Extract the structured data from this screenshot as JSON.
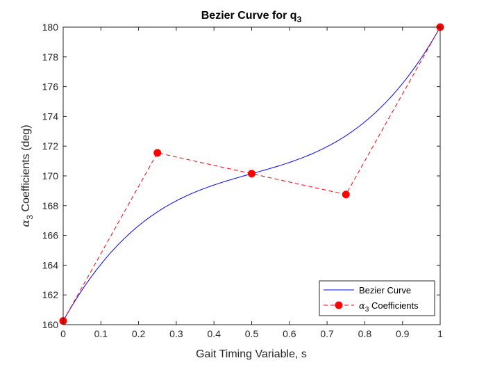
{
  "chart_data": {
    "type": "line",
    "title_main": "Bezier Curve for q",
    "title_sub": "3",
    "xlabel": "Gait Timing Variable, s",
    "ylabel_symbol": "α",
    "ylabel_sub": "3",
    "ylabel_rest": " Coefficients (deg)",
    "xlim": [
      0,
      1
    ],
    "ylim": [
      160,
      180
    ],
    "xticks": [
      0,
      0.1,
      0.2,
      0.3,
      0.4,
      0.5,
      0.6,
      0.7,
      0.8,
      0.9,
      1
    ],
    "xtick_labels": [
      "0",
      "0.1",
      "0.2",
      "0.3",
      "0.4",
      "0.5",
      "0.6",
      "0.7",
      "0.8",
      "0.9",
      "1"
    ],
    "yticks": [
      160,
      162,
      164,
      166,
      168,
      170,
      172,
      174,
      176,
      178,
      180
    ],
    "ytick_labels": [
      "160",
      "162",
      "164",
      "166",
      "168",
      "170",
      "172",
      "174",
      "176",
      "178",
      "180"
    ],
    "grid": false,
    "legend_position": "bottom-right",
    "series": [
      {
        "name": "Bezier Curve",
        "style": "solid",
        "color": "#0000ff",
        "bezier_control_points": [
          160.25,
          171.55,
          170.15,
          168.75,
          180.0
        ]
      },
      {
        "name_symbol": "α",
        "name_sub": "3",
        "name_rest": " Coefficients",
        "style": "dashed",
        "color": "#ff0000",
        "marker": "circle",
        "x": [
          0,
          0.25,
          0.5,
          0.75,
          1
        ],
        "y": [
          160.25,
          171.55,
          170.15,
          168.75,
          180.0
        ]
      }
    ]
  }
}
